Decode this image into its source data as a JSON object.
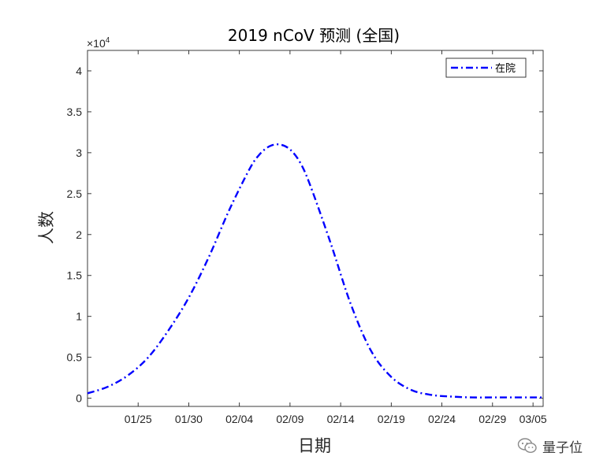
{
  "chart_data": {
    "type": "line",
    "title": "2019 nCoV 预测 (全国)",
    "xlabel": "日期",
    "ylabel": "人数",
    "y_exponent_label": "×10",
    "y_exponent_power": "4",
    "y_multiplier": 10000,
    "ylim": [
      -0.1,
      4.25
    ],
    "xlim": [
      0,
      45
    ],
    "y_ticks": [
      0,
      0.5,
      1,
      1.5,
      2,
      2.5,
      3,
      3.5,
      4
    ],
    "y_tick_labels": [
      "0",
      "0.5",
      "1",
      "1.5",
      "2",
      "2.5",
      "3",
      "3.5",
      "4"
    ],
    "x_tick_days": [
      5,
      10,
      15,
      20,
      25,
      30,
      35,
      40,
      44
    ],
    "x_tick_labels": [
      "01/25",
      "01/30",
      "02/04",
      "02/09",
      "02/14",
      "02/19",
      "02/24",
      "02/29",
      "03/05"
    ],
    "legend_position": "top-right",
    "series": [
      {
        "name": "在院",
        "color": "#0000ff",
        "style": "dash-dot",
        "x_days": [
          0,
          2,
          4,
          6,
          8,
          10,
          12,
          14,
          16,
          17,
          18,
          19,
          20,
          21,
          22,
          24,
          26,
          28,
          30,
          32,
          34,
          36,
          38,
          40,
          42,
          44,
          45
        ],
        "values": [
          0.06,
          0.14,
          0.28,
          0.5,
          0.83,
          1.23,
          1.73,
          2.3,
          2.8,
          2.98,
          3.08,
          3.1,
          3.04,
          2.88,
          2.6,
          1.9,
          1.15,
          0.58,
          0.26,
          0.1,
          0.04,
          0.02,
          0.01,
          0.01,
          0.01,
          0.01,
          0.01
        ]
      }
    ]
  },
  "watermark": {
    "text": "量子位",
    "icon": "wechat-icon"
  }
}
